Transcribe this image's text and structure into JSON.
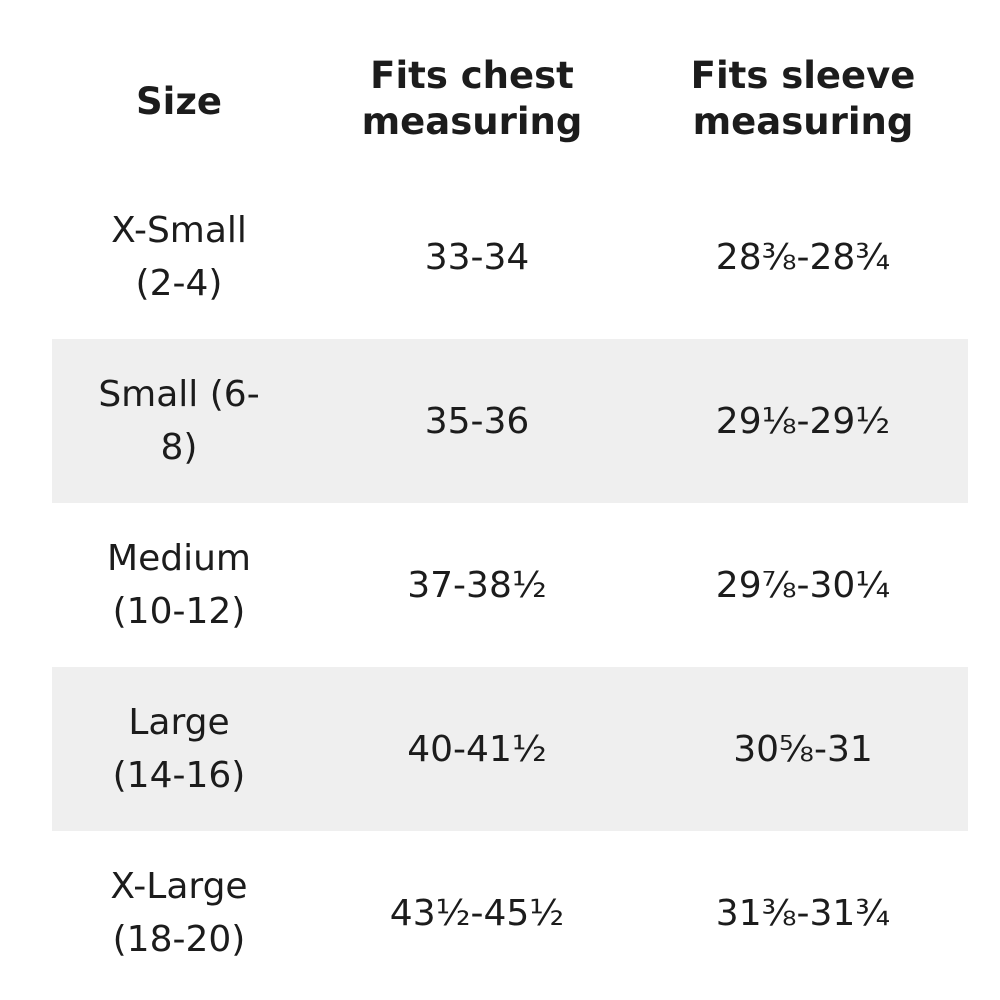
{
  "header": {
    "size": "Size",
    "chest_line1": "Fits chest",
    "chest_line2": "measuring",
    "sleeve_line1": "Fits sleeve",
    "sleeve_line2": "measuring"
  },
  "rows": [
    {
      "size": "X-Small (2-4)",
      "chest": "33-34",
      "sleeve": "28⅜-28¾",
      "shaded": false
    },
    {
      "size": "Small (6-8)",
      "chest": "35-36",
      "sleeve": "29⅛-29½",
      "shaded": true
    },
    {
      "size": "Medium (10-12)",
      "chest": "37-38½",
      "sleeve": "29⅞-30¼",
      "shaded": false
    },
    {
      "size": "Large (14-16)",
      "chest": "40-41½",
      "sleeve": "30⅝-31",
      "shaded": true
    },
    {
      "size": "X-Large (18-20)",
      "chest": "43½-45½",
      "sleeve": "31⅜-31¾",
      "shaded": false
    }
  ],
  "colors": {
    "stripe": "#efefef",
    "text": "#1c1c1c",
    "background": "#ffffff"
  }
}
